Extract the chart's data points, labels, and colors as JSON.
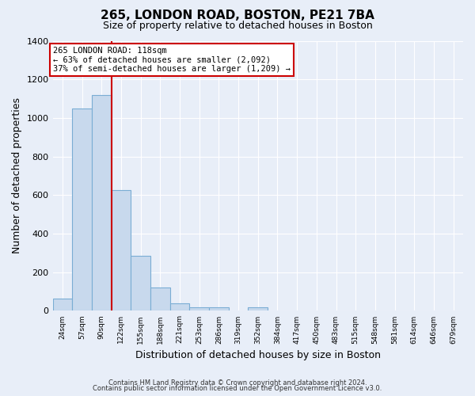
{
  "title": "265, LONDON ROAD, BOSTON, PE21 7BA",
  "subtitle": "Size of property relative to detached houses in Boston",
  "xlabel": "Distribution of detached houses by size in Boston",
  "ylabel": "Number of detached properties",
  "bin_labels": [
    "24sqm",
    "57sqm",
    "90sqm",
    "122sqm",
    "155sqm",
    "188sqm",
    "221sqm",
    "253sqm",
    "286sqm",
    "319sqm",
    "352sqm",
    "384sqm",
    "417sqm",
    "450sqm",
    "483sqm",
    "515sqm",
    "548sqm",
    "581sqm",
    "614sqm",
    "646sqm",
    "679sqm"
  ],
  "bar_values": [
    65,
    1050,
    1120,
    625,
    285,
    120,
    40,
    18,
    18,
    0,
    18,
    0,
    0,
    0,
    0,
    0,
    0,
    0,
    0,
    0,
    0
  ],
  "bar_color": "#c8d9ed",
  "bar_edgecolor": "#7aadd4",
  "vline_color": "#cc0000",
  "vline_x_bin_edge": 3,
  "annotation_title": "265 LONDON ROAD: 118sqm",
  "annotation_line1": "← 63% of detached houses are smaller (2,092)",
  "annotation_line2": "37% of semi-detached houses are larger (1,209) →",
  "annotation_box_facecolor": "#ffffff",
  "annotation_box_edgecolor": "#cc0000",
  "ylim": [
    0,
    1400
  ],
  "yticks": [
    0,
    200,
    400,
    600,
    800,
    1000,
    1200,
    1400
  ],
  "footnote1": "Contains HM Land Registry data © Crown copyright and database right 2024.",
  "footnote2": "Contains public sector information licensed under the Open Government Licence v3.0.",
  "background_color": "#e8eef8",
  "grid_color": "#ffffff",
  "figwidth": 6.0,
  "figheight": 5.0,
  "dpi": 100
}
